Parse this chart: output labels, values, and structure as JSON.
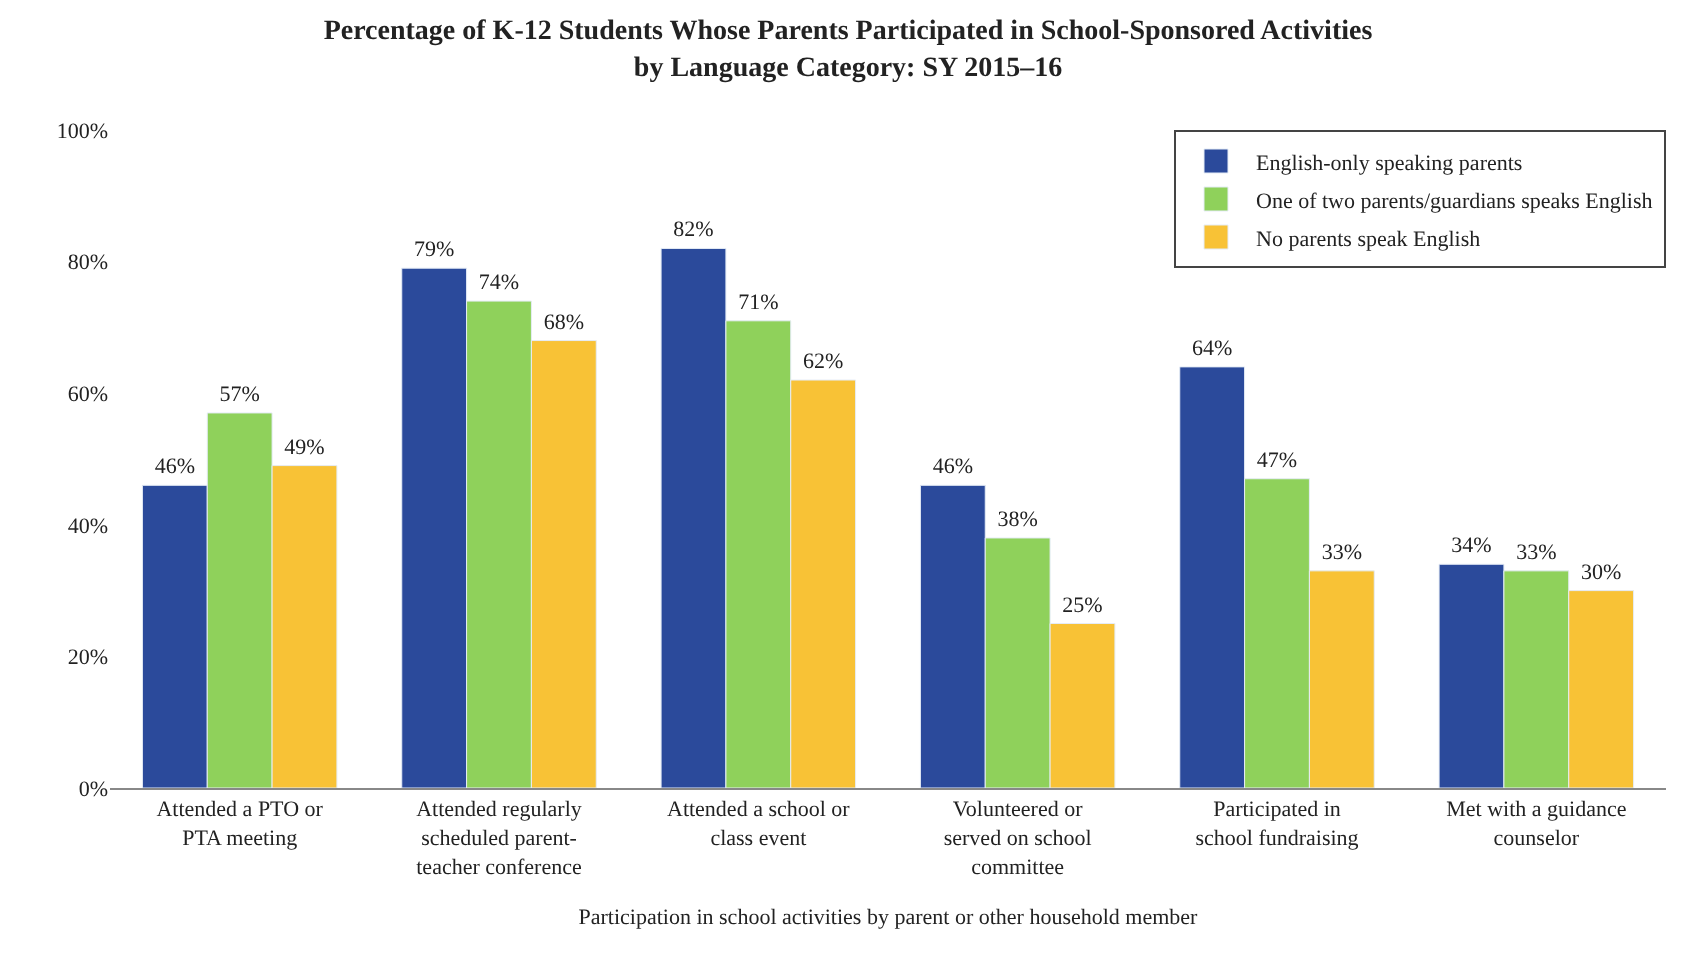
{
  "chart_data": {
    "type": "bar",
    "title": "Percentage of K-12 Students Whose Parents Participated in School-Sponsored Activities\nby Language Category: SY 2015–16",
    "xlabel": "Participation in school activities by parent or other household member",
    "categories": [
      "Attended a PTO or PTA meeting",
      "Attended regularly scheduled parent-teacher conference",
      "Attended a school or class event",
      "Volunteered or served on school committee",
      "Participated in school fundraising",
      "Met with a guidance counselor"
    ],
    "series": [
      {
        "name": "English-only speaking parents",
        "color": "#2b4a9b",
        "values": [
          46,
          79,
          82,
          46,
          64,
          34
        ],
        "value_labels": [
          "46%",
          "79%",
          "82%",
          "46%",
          "64%",
          "34%"
        ]
      },
      {
        "name": "One of two parents/guardians speaks English",
        "color": "#8fd15b",
        "values": [
          57,
          74,
          71,
          38,
          47,
          33
        ],
        "value_labels": [
          "57%",
          "74%",
          "71%",
          "38%",
          "47%",
          "33%"
        ]
      },
      {
        "name": "No parents speak English",
        "color": "#f8c236",
        "values": [
          49,
          68,
          62,
          25,
          33,
          30
        ],
        "value_labels": [
          "49%",
          "68%",
          "62%",
          "25%",
          "33%",
          "30%"
        ]
      }
    ],
    "ylim": [
      0,
      100
    ],
    "yticks": [
      {
        "value": 0,
        "label": "0%"
      },
      {
        "value": 20,
        "label": "20%"
      },
      {
        "value": 40,
        "label": "40%"
      },
      {
        "value": 60,
        "label": "60%"
      },
      {
        "value": 80,
        "label": "80%"
      },
      {
        "value": 100,
        "label": "100%"
      }
    ],
    "legend": "top right"
  }
}
